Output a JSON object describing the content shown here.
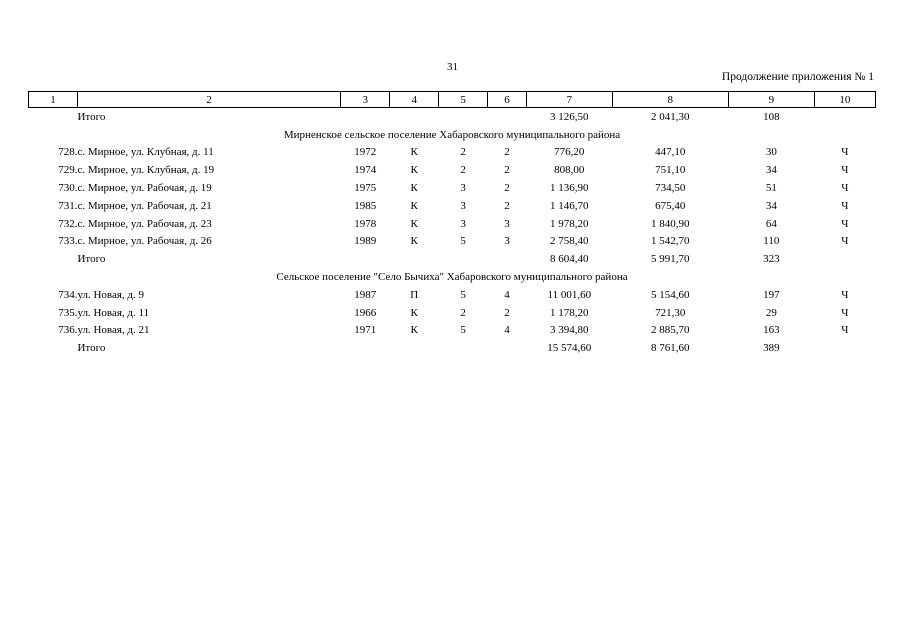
{
  "page_number": "31",
  "continuation": "Продолжение приложения № 1",
  "header": [
    "1",
    "2",
    "3",
    "4",
    "5",
    "6",
    "7",
    "8",
    "9",
    "10"
  ],
  "rows": [
    {
      "type": "total",
      "label": "Итого",
      "c7": "3 126,50",
      "c8": "2 041,30",
      "c9": "108"
    },
    {
      "type": "section",
      "title": "Мирненское сельское поселение Хабаровского муниципального района"
    },
    {
      "type": "data",
      "num": "728.",
      "addr": "с. Мирное, ул. Клубная, д. 11",
      "year": "1972",
      "mat": "К",
      "floors": "2",
      "entr": "2",
      "c7": "776,20",
      "c8": "447,10",
      "c9": "30",
      "c10": "Ч"
    },
    {
      "type": "data",
      "num": "729.",
      "addr": "с. Мирное, ул. Клубная, д. 19",
      "year": "1974",
      "mat": "К",
      "floors": "2",
      "entr": "2",
      "c7": "808,00",
      "c8": "751,10",
      "c9": "34",
      "c10": "Ч"
    },
    {
      "type": "data",
      "num": "730.",
      "addr": "с. Мирное, ул. Рабочая, д. 19",
      "year": "1975",
      "mat": "К",
      "floors": "3",
      "entr": "2",
      "c7": "1 136,90",
      "c8": "734,50",
      "c9": "51",
      "c10": "Ч"
    },
    {
      "type": "data",
      "num": "731.",
      "addr": "с. Мирное, ул. Рабочая, д. 21",
      "year": "1985",
      "mat": "К",
      "floors": "3",
      "entr": "2",
      "c7": "1 146,70",
      "c8": "675,40",
      "c9": "34",
      "c10": "Ч"
    },
    {
      "type": "data",
      "num": "732.",
      "addr": "с. Мирное, ул. Рабочая, д. 23",
      "year": "1978",
      "mat": "К",
      "floors": "3",
      "entr": "3",
      "c7": "1 978,20",
      "c8": "1 840,90",
      "c9": "64",
      "c10": "Ч"
    },
    {
      "type": "data",
      "num": "733.",
      "addr": "с. Мирное, ул. Рабочая, д. 26",
      "year": "1989",
      "mat": "К",
      "floors": "5",
      "entr": "3",
      "c7": "2 758,40",
      "c8": "1 542,70",
      "c9": "110",
      "c10": "Ч"
    },
    {
      "type": "total",
      "label": "Итого",
      "c7": "8 604,40",
      "c8": "5 991,70",
      "c9": "323"
    },
    {
      "type": "section",
      "title": "Сельское поселение \"Село Бычиха\" Хабаровского муниципального района"
    },
    {
      "type": "data",
      "num": "734.",
      "addr": "ул. Новая, д. 9",
      "year": "1987",
      "mat": "П",
      "floors": "5",
      "entr": "4",
      "c7": "11 001,60",
      "c8": "5 154,60",
      "c9": "197",
      "c10": "Ч"
    },
    {
      "type": "data",
      "num": "735.",
      "addr": "ул. Новая, д. 11",
      "year": "1966",
      "mat": "К",
      "floors": "2",
      "entr": "2",
      "c7": "1 178,20",
      "c8": "721,30",
      "c9": "29",
      "c10": "Ч"
    },
    {
      "type": "data",
      "num": "736.",
      "addr": "ул. Новая, д. 21",
      "year": "1971",
      "mat": "К",
      "floors": "5",
      "entr": "4",
      "c7": "3 394,80",
      "c8": "2 885,70",
      "c9": "163",
      "c10": "Ч"
    },
    {
      "type": "total",
      "label": "Итого",
      "c7": "15 574,60",
      "c8": "8 761,60",
      "c9": "389"
    }
  ]
}
